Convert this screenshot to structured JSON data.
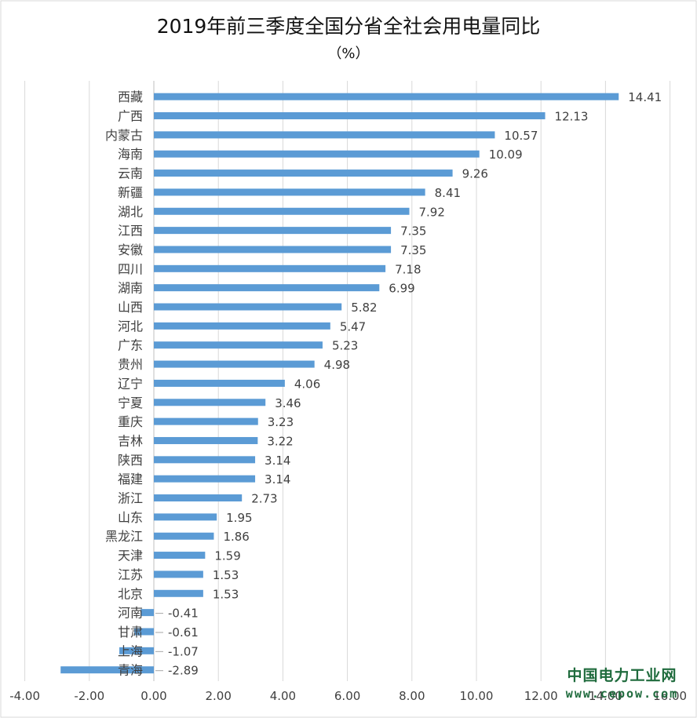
{
  "chart_data": {
    "type": "bar",
    "orientation": "horizontal",
    "title": "2019年前三季度全国分省全社会用电量同比",
    "subtitle": "（%）",
    "categories": [
      "西藏",
      "广西",
      "内蒙古",
      "海南",
      "云南",
      "新疆",
      "湖北",
      "江西",
      "安徽",
      "四川",
      "湖南",
      "山西",
      "河北",
      "广东",
      "贵州",
      "辽宁",
      "宁夏",
      "重庆",
      "吉林",
      "陕西",
      "福建",
      "浙江",
      "山东",
      "黑龙江",
      "天津",
      "江苏",
      "北京",
      "河南",
      "甘肃",
      "上海",
      "青海"
    ],
    "values": [
      14.41,
      12.13,
      10.57,
      10.09,
      9.26,
      8.41,
      7.92,
      7.35,
      7.35,
      7.18,
      6.99,
      5.82,
      5.47,
      5.23,
      4.98,
      4.06,
      3.46,
      3.23,
      3.22,
      3.14,
      3.14,
      2.73,
      1.95,
      1.86,
      1.59,
      1.53,
      1.53,
      -0.41,
      -0.61,
      -1.07,
      -2.89
    ],
    "value_labels": [
      "14.41",
      "12.13",
      "10.57",
      "10.09",
      "9.26",
      "8.41",
      "7.92",
      "7.35",
      "7.35",
      "7.18",
      "6.99",
      "5.82",
      "5.47",
      "5.23",
      "4.98",
      "4.06",
      "3.46",
      "3.23",
      "3.22",
      "3.14",
      "3.14",
      "2.73",
      "1.95",
      "1.86",
      "1.59",
      "1.53",
      "1.53",
      "-0.41",
      "-0.61",
      "-1.07",
      "-2.89"
    ],
    "xlim": [
      -4,
      16
    ],
    "x_ticks": [
      "-4.00",
      "-2.00",
      "0.00",
      "2.00",
      "4.00",
      "6.00",
      "8.00",
      "10.00",
      "12.00",
      "14.00",
      "16.00"
    ],
    "grid": true,
    "bar_color": "#5b9bd5",
    "label_color": "#404040"
  },
  "watermark": {
    "name": "中国电力工业网",
    "url": "www.cepow.com"
  }
}
